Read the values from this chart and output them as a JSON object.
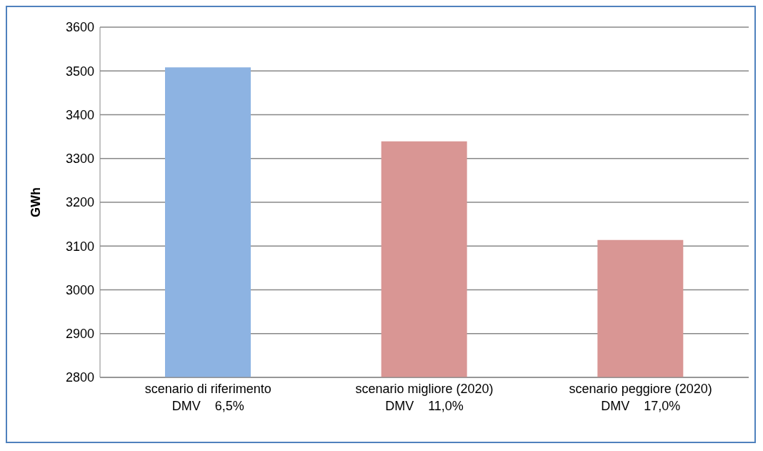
{
  "chart_data": {
    "type": "bar",
    "ylabel": "GWh",
    "categories": [
      "scenario di riferimento\nDMV    6,5%",
      "scenario migliore (2020)\nDMV    11,0%",
      "scenario peggiore (2020)\nDMV    17,0%"
    ],
    "values": [
      3508,
      3339,
      3114
    ],
    "colors": [
      "#8db3e2",
      "#d99694",
      "#d99694"
    ],
    "ylim": [
      2800,
      3600
    ],
    "yticks": [
      2800,
      2900,
      3000,
      3100,
      3200,
      3300,
      3400,
      3500,
      3600
    ],
    "grid": "y"
  }
}
